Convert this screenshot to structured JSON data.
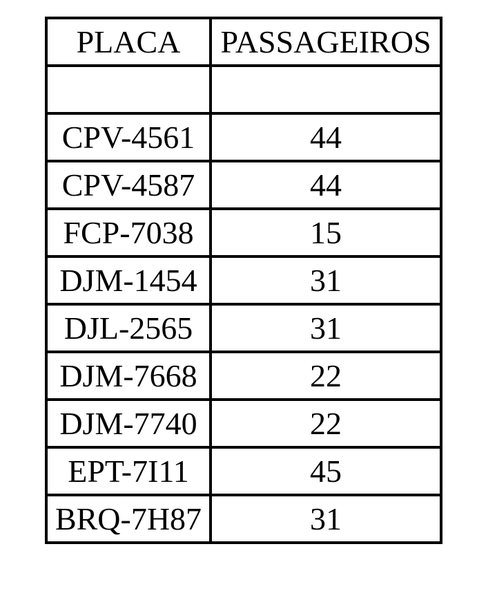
{
  "colors": {
    "background": "#ffffff",
    "border": "#000000",
    "text": "#000000"
  },
  "table": {
    "headers": [
      {
        "label": "PLACA"
      },
      {
        "label": "PASSAGEIROS"
      }
    ],
    "rows": [
      {
        "placa": "",
        "passageiros": ""
      },
      {
        "placa": "CPV-4561",
        "passageiros": "44"
      },
      {
        "placa": "CPV-4587",
        "passageiros": "44"
      },
      {
        "placa": "FCP-7038",
        "passageiros": "15"
      },
      {
        "placa": "DJM-1454",
        "passageiros": "31"
      },
      {
        "placa": "DJL-2565",
        "passageiros": "31"
      },
      {
        "placa": "DJM-7668",
        "passageiros": "22"
      },
      {
        "placa": "DJM-7740",
        "passageiros": "22"
      },
      {
        "placa": "EPT-7I11",
        "passageiros": "45"
      },
      {
        "placa": "BRQ-7H87",
        "passageiros": "31"
      }
    ]
  }
}
